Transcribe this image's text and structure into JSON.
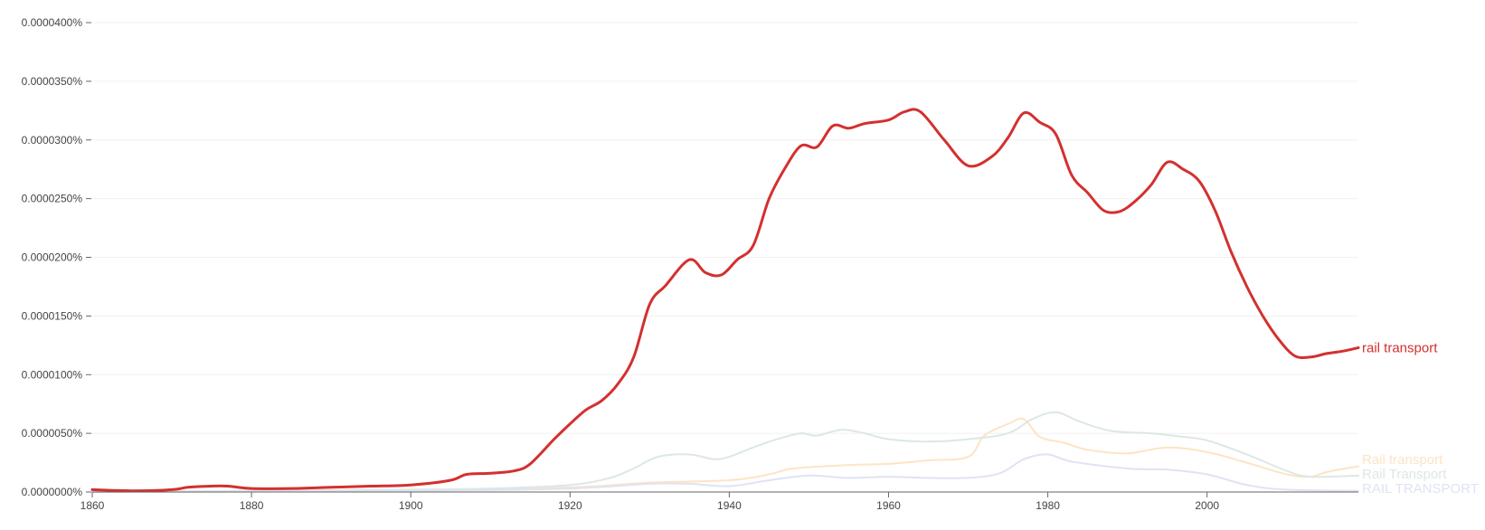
{
  "chart_data": {
    "type": "line",
    "title": "",
    "xlabel": "",
    "ylabel": "",
    "xlim": [
      1860,
      2019
    ],
    "ylim": [
      0,
      4e-05
    ],
    "x_ticks": [
      {
        "value": 1860,
        "label": "1860"
      },
      {
        "value": 1880,
        "label": "1880"
      },
      {
        "value": 1900,
        "label": "1900"
      },
      {
        "value": 1920,
        "label": "1920"
      },
      {
        "value": 1940,
        "label": "1940"
      },
      {
        "value": 1960,
        "label": "1960"
      },
      {
        "value": 1980,
        "label": "1980"
      },
      {
        "value": 2000,
        "label": "2000"
      }
    ],
    "y_ticks": [
      {
        "value": 0.0,
        "label": "0.0000000%"
      },
      {
        "value": 5e-06,
        "label": "0.0000050%"
      },
      {
        "value": 1e-05,
        "label": "0.0000100%"
      },
      {
        "value": 1.5e-05,
        "label": "0.0000150%"
      },
      {
        "value": 2e-05,
        "label": "0.0000200%"
      },
      {
        "value": 2.5e-05,
        "label": "0.0000250%"
      },
      {
        "value": 3e-05,
        "label": "0.0000300%"
      },
      {
        "value": 3.5e-05,
        "label": "0.0000350%"
      },
      {
        "value": 4e-05,
        "label": "0.0000400%"
      }
    ],
    "grid": "horizontal",
    "legend": "labels at right end of lines",
    "series": [
      {
        "name": "rail transport",
        "color": "#d3302f",
        "emphasis": true,
        "points": [
          [
            1860,
            2e-07
          ],
          [
            1865,
            1e-07
          ],
          [
            1870,
            2e-07
          ],
          [
            1872,
            4e-07
          ],
          [
            1875,
            5e-07
          ],
          [
            1877,
            5e-07
          ],
          [
            1880,
            3e-07
          ],
          [
            1885,
            3e-07
          ],
          [
            1890,
            4e-07
          ],
          [
            1895,
            5e-07
          ],
          [
            1900,
            6e-07
          ],
          [
            1905,
            1e-06
          ],
          [
            1907,
            1.5e-06
          ],
          [
            1910,
            1.6e-06
          ],
          [
            1913,
            1.8e-06
          ],
          [
            1915,
            2.4e-06
          ],
          [
            1918,
            4.5e-06
          ],
          [
            1920,
            5.8e-06
          ],
          [
            1922,
            7e-06
          ],
          [
            1924,
            7.8e-06
          ],
          [
            1926,
            9.2e-06
          ],
          [
            1928,
            1.15e-05
          ],
          [
            1930,
            1.6e-05
          ],
          [
            1932,
            1.76e-05
          ],
          [
            1935,
            1.98e-05
          ],
          [
            1937,
            1.87e-05
          ],
          [
            1939,
            1.85e-05
          ],
          [
            1941,
            1.98e-05
          ],
          [
            1943,
            2.1e-05
          ],
          [
            1945,
            2.5e-05
          ],
          [
            1947,
            2.76e-05
          ],
          [
            1949,
            2.95e-05
          ],
          [
            1951,
            2.94e-05
          ],
          [
            1953,
            3.12e-05
          ],
          [
            1955,
            3.1e-05
          ],
          [
            1957,
            3.14e-05
          ],
          [
            1960,
            3.17e-05
          ],
          [
            1962,
            3.24e-05
          ],
          [
            1964,
            3.24e-05
          ],
          [
            1967,
            3e-05
          ],
          [
            1970,
            2.78e-05
          ],
          [
            1973,
            2.86e-05
          ],
          [
            1975,
            3.02e-05
          ],
          [
            1977,
            3.23e-05
          ],
          [
            1979,
            3.15e-05
          ],
          [
            1981,
            3.05e-05
          ],
          [
            1983,
            2.7e-05
          ],
          [
            1985,
            2.55e-05
          ],
          [
            1987,
            2.4e-05
          ],
          [
            1989,
            2.39e-05
          ],
          [
            1991,
            2.48e-05
          ],
          [
            1993,
            2.62e-05
          ],
          [
            1995,
            2.81e-05
          ],
          [
            1997,
            2.75e-05
          ],
          [
            1999,
            2.65e-05
          ],
          [
            2001,
            2.4e-05
          ],
          [
            2003,
            2.05e-05
          ],
          [
            2005,
            1.75e-05
          ],
          [
            2007,
            1.5e-05
          ],
          [
            2009,
            1.3e-05
          ],
          [
            2011,
            1.16e-05
          ],
          [
            2013,
            1.15e-05
          ],
          [
            2015,
            1.18e-05
          ],
          [
            2017,
            1.2e-05
          ],
          [
            2019,
            1.23e-05
          ]
        ]
      },
      {
        "name": "Rail transport",
        "color": "#fde4c5",
        "emphasis": false,
        "points": [
          [
            1860,
            0.0
          ],
          [
            1880,
            1e-07
          ],
          [
            1900,
            2e-07
          ],
          [
            1920,
            4e-07
          ],
          [
            1930,
            8e-07
          ],
          [
            1940,
            1e-06
          ],
          [
            1945,
            1.5e-06
          ],
          [
            1948,
            2e-06
          ],
          [
            1955,
            2.3e-06
          ],
          [
            1960,
            2.4e-06
          ],
          [
            1965,
            2.7e-06
          ],
          [
            1970,
            3e-06
          ],
          [
            1972,
            4.8e-06
          ],
          [
            1975,
            5.8e-06
          ],
          [
            1977,
            6.2e-06
          ],
          [
            1979,
            4.7e-06
          ],
          [
            1982,
            4.2e-06
          ],
          [
            1985,
            3.6e-06
          ],
          [
            1990,
            3.3e-06
          ],
          [
            1995,
            3.8e-06
          ],
          [
            2000,
            3.4e-06
          ],
          [
            2005,
            2.5e-06
          ],
          [
            2010,
            1.5e-06
          ],
          [
            2013,
            1.3e-06
          ],
          [
            2015,
            1.7e-06
          ],
          [
            2019,
            2.2e-06
          ]
        ]
      },
      {
        "name": "Rail Transport",
        "color": "#dde7e6",
        "emphasis": false,
        "points": [
          [
            1860,
            0.0
          ],
          [
            1880,
            1e-07
          ],
          [
            1900,
            2e-07
          ],
          [
            1910,
            3e-07
          ],
          [
            1920,
            6e-07
          ],
          [
            1925,
            1.2e-06
          ],
          [
            1928,
            2e-06
          ],
          [
            1931,
            3e-06
          ],
          [
            1935,
            3.2e-06
          ],
          [
            1938,
            2.8e-06
          ],
          [
            1940,
            3e-06
          ],
          [
            1943,
            3.8e-06
          ],
          [
            1946,
            4.5e-06
          ],
          [
            1949,
            5e-06
          ],
          [
            1951,
            4.8e-06
          ],
          [
            1954,
            5.3e-06
          ],
          [
            1957,
            5e-06
          ],
          [
            1960,
            4.5e-06
          ],
          [
            1965,
            4.3e-06
          ],
          [
            1970,
            4.5e-06
          ],
          [
            1975,
            5e-06
          ],
          [
            1978,
            6.2e-06
          ],
          [
            1981,
            6.8e-06
          ],
          [
            1984,
            6e-06
          ],
          [
            1988,
            5.2e-06
          ],
          [
            1993,
            5e-06
          ],
          [
            1997,
            4.7e-06
          ],
          [
            2000,
            4.4e-06
          ],
          [
            2005,
            3.2e-06
          ],
          [
            2010,
            1.8e-06
          ],
          [
            2013,
            1.3e-06
          ],
          [
            2019,
            1.4e-06
          ]
        ]
      },
      {
        "name": "RAIL TRANSPORT",
        "color": "#dfe3f3",
        "emphasis": false,
        "points": [
          [
            1860,
            0.0
          ],
          [
            1900,
            1e-07
          ],
          [
            1920,
            3e-07
          ],
          [
            1930,
            7e-07
          ],
          [
            1935,
            7e-07
          ],
          [
            1940,
            5e-07
          ],
          [
            1945,
            1e-06
          ],
          [
            1950,
            1.4e-06
          ],
          [
            1955,
            1.2e-06
          ],
          [
            1960,
            1.3e-06
          ],
          [
            1965,
            1.2e-06
          ],
          [
            1970,
            1.2e-06
          ],
          [
            1974,
            1.6e-06
          ],
          [
            1977,
            2.8e-06
          ],
          [
            1980,
            3.2e-06
          ],
          [
            1983,
            2.6e-06
          ],
          [
            1990,
            2e-06
          ],
          [
            1995,
            1.9e-06
          ],
          [
            2000,
            1.5e-06
          ],
          [
            2005,
            6e-07
          ],
          [
            2010,
            2e-07
          ],
          [
            2019,
            1e-07
          ]
        ]
      }
    ]
  }
}
